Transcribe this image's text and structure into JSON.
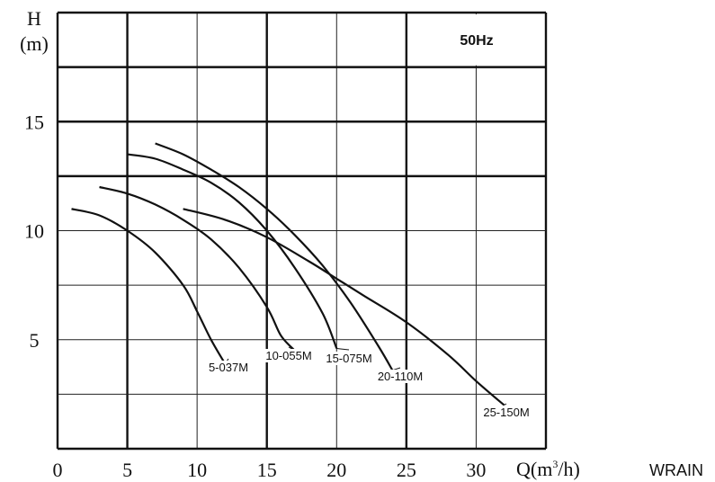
{
  "chart_data": {
    "type": "line",
    "title": "",
    "badge": {
      "text": "50Hz",
      "color": "#c07a3c"
    },
    "watermark": "WRAIN",
    "y_axis": {
      "label_line1": "H",
      "label_line2": "(m)",
      "ylim": [
        0,
        20
      ],
      "ticks": [
        5,
        10,
        15
      ]
    },
    "x_axis": {
      "label_main": "Q(m",
      "label_sup": "3",
      "label_tail": "/h)",
      "xlim": [
        0,
        35
      ],
      "ticks": [
        0,
        5,
        10,
        15,
        20,
        25,
        30
      ]
    },
    "series": [
      {
        "name": "5-037M",
        "x": [
          1,
          3,
          5,
          7,
          9,
          10,
          11,
          12
        ],
        "y": [
          11,
          10.7,
          10,
          9,
          7.5,
          6.3,
          5,
          3.9
        ]
      },
      {
        "name": "10-055M",
        "x": [
          3,
          5,
          7,
          9,
          11,
          13,
          15,
          16,
          17
        ],
        "y": [
          12,
          11.7,
          11.2,
          10.5,
          9.6,
          8.3,
          6.5,
          5.2,
          4.5
        ]
      },
      {
        "name": "15-075M",
        "x": [
          5,
          7,
          9,
          11,
          13,
          15,
          17,
          19,
          20
        ],
        "y": [
          13.5,
          13.3,
          12.8,
          12.2,
          11.3,
          10,
          8.3,
          6.2,
          4.6
        ]
      },
      {
        "name": "20-110M",
        "x": [
          7,
          9,
          11,
          13,
          15,
          17,
          19,
          21,
          23,
          24
        ],
        "y": [
          14,
          13.5,
          12.8,
          12,
          11,
          9.8,
          8.4,
          6.7,
          4.7,
          3.6
        ]
      },
      {
        "name": "25-150M",
        "x": [
          9,
          12,
          15,
          18,
          20,
          22,
          25,
          28,
          30,
          32
        ],
        "y": [
          11,
          10.5,
          9.7,
          8.6,
          7.8,
          7,
          5.8,
          4.3,
          3.1,
          2
        ]
      }
    ]
  }
}
